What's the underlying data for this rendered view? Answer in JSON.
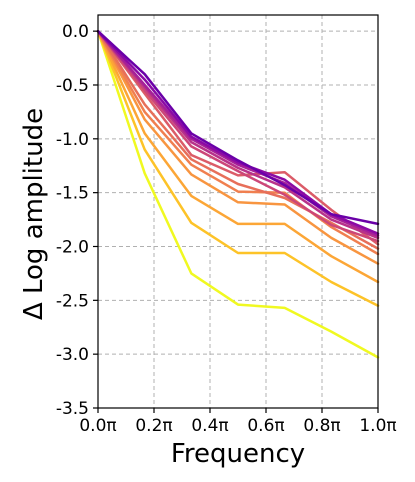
{
  "chart_data": {
    "type": "line",
    "title": "",
    "xlabel": "Frequency",
    "ylabel": "Δ Log amplitude",
    "xlim": [
      0,
      1
    ],
    "ylim": [
      -3.5,
      0.15
    ],
    "grid": true,
    "grid_style": "dashed",
    "x_tick_labels": [
      "0.0π",
      "0.2π",
      "0.4π",
      "0.6π",
      "0.8π",
      "1.0π"
    ],
    "y_tick_labels": [
      "0.0",
      "-0.5",
      "-1.0",
      "-1.5",
      "-2.0",
      "-2.5",
      "-3.0",
      "-3.5"
    ],
    "x": [
      0,
      0.1667,
      0.3333,
      0.5,
      0.6667,
      0.8333,
      1.0
    ],
    "colormap": "plasma",
    "series": [
      {
        "color": "#f0f921",
        "values": [
          0,
          -1.32,
          -2.25,
          -2.54,
          -2.57,
          -2.79,
          -3.03
        ]
      },
      {
        "color": "#fdc328",
        "values": [
          0,
          -1.1,
          -1.78,
          -2.06,
          -2.06,
          -2.33,
          -2.55
        ]
      },
      {
        "color": "#fca636",
        "values": [
          0,
          -0.95,
          -1.53,
          -1.79,
          -1.79,
          -2.09,
          -2.33
        ]
      },
      {
        "color": "#f89540",
        "values": [
          0,
          -0.82,
          -1.33,
          -1.59,
          -1.61,
          -1.92,
          -2.16
        ]
      },
      {
        "color": "#f07f4f",
        "values": [
          0,
          -0.75,
          -1.24,
          -1.49,
          -1.5,
          -1.82,
          -2.07
        ]
      },
      {
        "color": "#e76f5a",
        "values": [
          0,
          -0.68,
          -1.19,
          -1.42,
          -1.55,
          -1.78,
          -2.02
        ]
      },
      {
        "color": "#db5c68",
        "values": [
          0,
          -0.58,
          -1.15,
          -1.34,
          -1.31,
          -1.66,
          -1.98
        ]
      },
      {
        "color": "#cc4778",
        "values": [
          0,
          -0.55,
          -1.07,
          -1.3,
          -1.52,
          -1.8,
          -1.95
        ]
      },
      {
        "color": "#b83289",
        "values": [
          0,
          -0.52,
          -1.03,
          -1.27,
          -1.45,
          -1.75,
          -1.92
        ]
      },
      {
        "color": "#a62098",
        "values": [
          0,
          -0.5,
          -1.0,
          -1.24,
          -1.41,
          -1.72,
          -1.9
        ]
      },
      {
        "color": "#8b0aa5",
        "values": [
          0,
          -0.45,
          -0.98,
          -1.22,
          -1.38,
          -1.7,
          -1.88
        ]
      },
      {
        "color": "#6a00a8",
        "values": [
          0,
          -0.4,
          -0.95,
          -1.2,
          -1.43,
          -1.7,
          -1.79
        ]
      }
    ]
  }
}
